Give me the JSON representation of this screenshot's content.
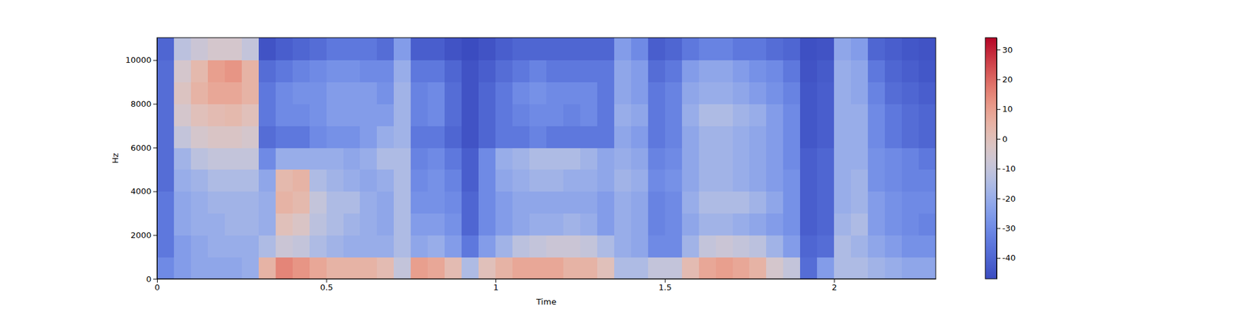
{
  "chart_data": {
    "type": "heatmap",
    "x_label": "Time",
    "y_label": "Hz",
    "xlim": [
      0,
      2.3
    ],
    "xticks": [
      0,
      0.5,
      1,
      1.5,
      2
    ],
    "ylim": [
      0,
      11025
    ],
    "yticks": [
      0,
      2000,
      4000,
      6000,
      8000,
      10000
    ],
    "zlim": [
      -47,
      34
    ],
    "zticks": [
      -40,
      -30,
      -20,
      -10,
      0,
      10,
      20,
      30
    ],
    "x_edges": [
      0,
      0.05,
      0.1,
      0.15,
      0.2,
      0.25,
      0.3,
      0.35,
      0.4,
      0.45,
      0.5,
      0.55,
      0.6,
      0.65,
      0.7,
      0.75,
      0.8,
      0.85,
      0.9,
      0.95,
      1.0,
      1.05,
      1.1,
      1.15,
      1.2,
      1.25,
      1.3,
      1.35,
      1.4,
      1.45,
      1.5,
      1.55,
      1.6,
      1.65,
      1.7,
      1.75,
      1.8,
      1.85,
      1.9,
      1.95,
      2.0,
      2.05,
      2.1,
      2.15,
      2.2,
      2.25,
      2.3
    ],
    "y_edges": [
      0,
      1000,
      2000,
      3000,
      4000,
      5000,
      6000,
      7000,
      8000,
      9000,
      10000,
      11025
    ],
    "z": [
      [
        -30,
        -35,
        -35,
        -35,
        -38,
        -38,
        -38,
        -38,
        -38,
        -38,
        -40
      ],
      [
        -25,
        -25,
        -22,
        -22,
        -20,
        -18,
        -10,
        -5,
        -2,
        -5,
        -12
      ],
      [
        -22,
        -22,
        -20,
        -20,
        -18,
        -12,
        -5,
        0,
        5,
        3,
        -8
      ],
      [
        -22,
        -20,
        -20,
        -18,
        -15,
        -10,
        -3,
        2,
        8,
        10,
        -5
      ],
      [
        -22,
        -20,
        -18,
        -18,
        -15,
        -10,
        -3,
        3,
        8,
        12,
        -5
      ],
      [
        -20,
        -20,
        -18,
        -18,
        -15,
        -10,
        -5,
        0,
        5,
        5,
        -10
      ],
      [
        5,
        -15,
        -20,
        -20,
        -22,
        -30,
        -38,
        -35,
        -35,
        -38,
        -45
      ],
      [
        15,
        -8,
        0,
        5,
        3,
        -20,
        -35,
        -30,
        -30,
        -35,
        -42
      ],
      [
        12,
        -10,
        -3,
        3,
        5,
        -20,
        -35,
        -30,
        -28,
        -32,
        -40
      ],
      [
        8,
        -15,
        -12,
        -10,
        -15,
        -20,
        -30,
        -28,
        -28,
        -30,
        -38
      ],
      [
        5,
        -18,
        -15,
        -15,
        -18,
        -20,
        -28,
        -25,
        -25,
        -28,
        -35
      ],
      [
        5,
        -20,
        -18,
        -15,
        -20,
        -22,
        -28,
        -25,
        -25,
        -28,
        -35
      ],
      [
        5,
        -20,
        -20,
        -20,
        -22,
        -20,
        -25,
        -25,
        -25,
        -30,
        -35
      ],
      [
        2,
        -20,
        -22,
        -22,
        -20,
        -15,
        -20,
        -25,
        -28,
        -30,
        -38
      ],
      [
        -10,
        -15,
        -15,
        -15,
        -15,
        -15,
        -18,
        -18,
        -18,
        -20,
        -25
      ],
      [
        10,
        -22,
        -25,
        -28,
        -30,
        -32,
        -35,
        -32,
        -32,
        -35,
        -42
      ],
      [
        8,
        -20,
        -25,
        -28,
        -28,
        -30,
        -35,
        -30,
        -30,
        -35,
        -42
      ],
      [
        2,
        -25,
        -28,
        -30,
        -32,
        -35,
        -40,
        -38,
        -38,
        -40,
        -45
      ],
      [
        -15,
        -35,
        -40,
        -40,
        -42,
        -42,
        -45,
        -45,
        -45,
        -45,
        -47
      ],
      [
        0,
        -25,
        -30,
        -30,
        -30,
        -30,
        -40,
        -40,
        -40,
        -42,
        -45
      ],
      [
        5,
        -18,
        -25,
        -25,
        -22,
        -20,
        -35,
        -35,
        -35,
        -38,
        -42
      ],
      [
        8,
        -12,
        -22,
        -22,
        -20,
        -18,
        -35,
        -32,
        -30,
        -35,
        -40
      ],
      [
        8,
        -10,
        -20,
        -22,
        -18,
        -15,
        -32,
        -30,
        -28,
        -32,
        -40
      ],
      [
        8,
        -8,
        -20,
        -22,
        -18,
        -15,
        -35,
        -30,
        -30,
        -35,
        -40
      ],
      [
        5,
        -8,
        -18,
        -22,
        -20,
        -15,
        -35,
        -32,
        -30,
        -35,
        -40
      ],
      [
        5,
        -10,
        -20,
        -22,
        -20,
        -18,
        -35,
        -30,
        -30,
        -35,
        -40
      ],
      [
        0,
        -15,
        -25,
        -25,
        -22,
        -22,
        -35,
        -35,
        -35,
        -35,
        -40
      ],
      [
        -15,
        -20,
        -20,
        -20,
        -18,
        -20,
        -22,
        -20,
        -22,
        -22,
        -25
      ],
      [
        -15,
        -22,
        -22,
        -22,
        -20,
        -22,
        -25,
        -22,
        -25,
        -25,
        -30
      ],
      [
        -10,
        -30,
        -32,
        -32,
        -30,
        -32,
        -35,
        -35,
        -35,
        -38,
        -42
      ],
      [
        -10,
        -30,
        -30,
        -30,
        -28,
        -30,
        -32,
        -32,
        -32,
        -35,
        -40
      ],
      [
        2,
        -18,
        -22,
        -20,
        -22,
        -22,
        -22,
        -20,
        -22,
        -25,
        -35
      ],
      [
        8,
        -10,
        -18,
        -15,
        -18,
        -18,
        -18,
        -15,
        -20,
        -22,
        -32
      ],
      [
        10,
        -8,
        -18,
        -15,
        -18,
        -18,
        -18,
        -15,
        -20,
        -22,
        -32
      ],
      [
        8,
        -10,
        -20,
        -15,
        -20,
        -20,
        -20,
        -18,
        -22,
        -25,
        -35
      ],
      [
        5,
        -12,
        -22,
        -18,
        -22,
        -22,
        -22,
        -20,
        -25,
        -28,
        -35
      ],
      [
        -5,
        -18,
        -25,
        -22,
        -25,
        -25,
        -25,
        -25,
        -28,
        -30,
        -38
      ],
      [
        -10,
        -25,
        -28,
        -28,
        -28,
        -30,
        -30,
        -30,
        -32,
        -35,
        -40
      ],
      [
        -38,
        -40,
        -42,
        -42,
        -42,
        -42,
        -44,
        -44,
        -44,
        -45,
        -46
      ],
      [
        -25,
        -38,
        -40,
        -40,
        -40,
        -40,
        -42,
        -42,
        -42,
        -43,
        -45
      ],
      [
        -15,
        -15,
        -18,
        -20,
        -20,
        -20,
        -20,
        -20,
        -20,
        -20,
        -22
      ],
      [
        -15,
        -18,
        -15,
        -18,
        -18,
        -20,
        -20,
        -20,
        -22,
        -22,
        -25
      ],
      [
        -18,
        -22,
        -25,
        -25,
        -28,
        -28,
        -30,
        -30,
        -32,
        -35,
        -40
      ],
      [
        -20,
        -25,
        -28,
        -28,
        -30,
        -30,
        -35,
        -35,
        -38,
        -40,
        -42
      ],
      [
        -22,
        -28,
        -30,
        -30,
        -32,
        -32,
        -38,
        -38,
        -40,
        -42,
        -44
      ],
      [
        -22,
        -28,
        -32,
        -30,
        -32,
        -35,
        -40,
        -40,
        -42,
        -44,
        -45
      ]
    ]
  }
}
